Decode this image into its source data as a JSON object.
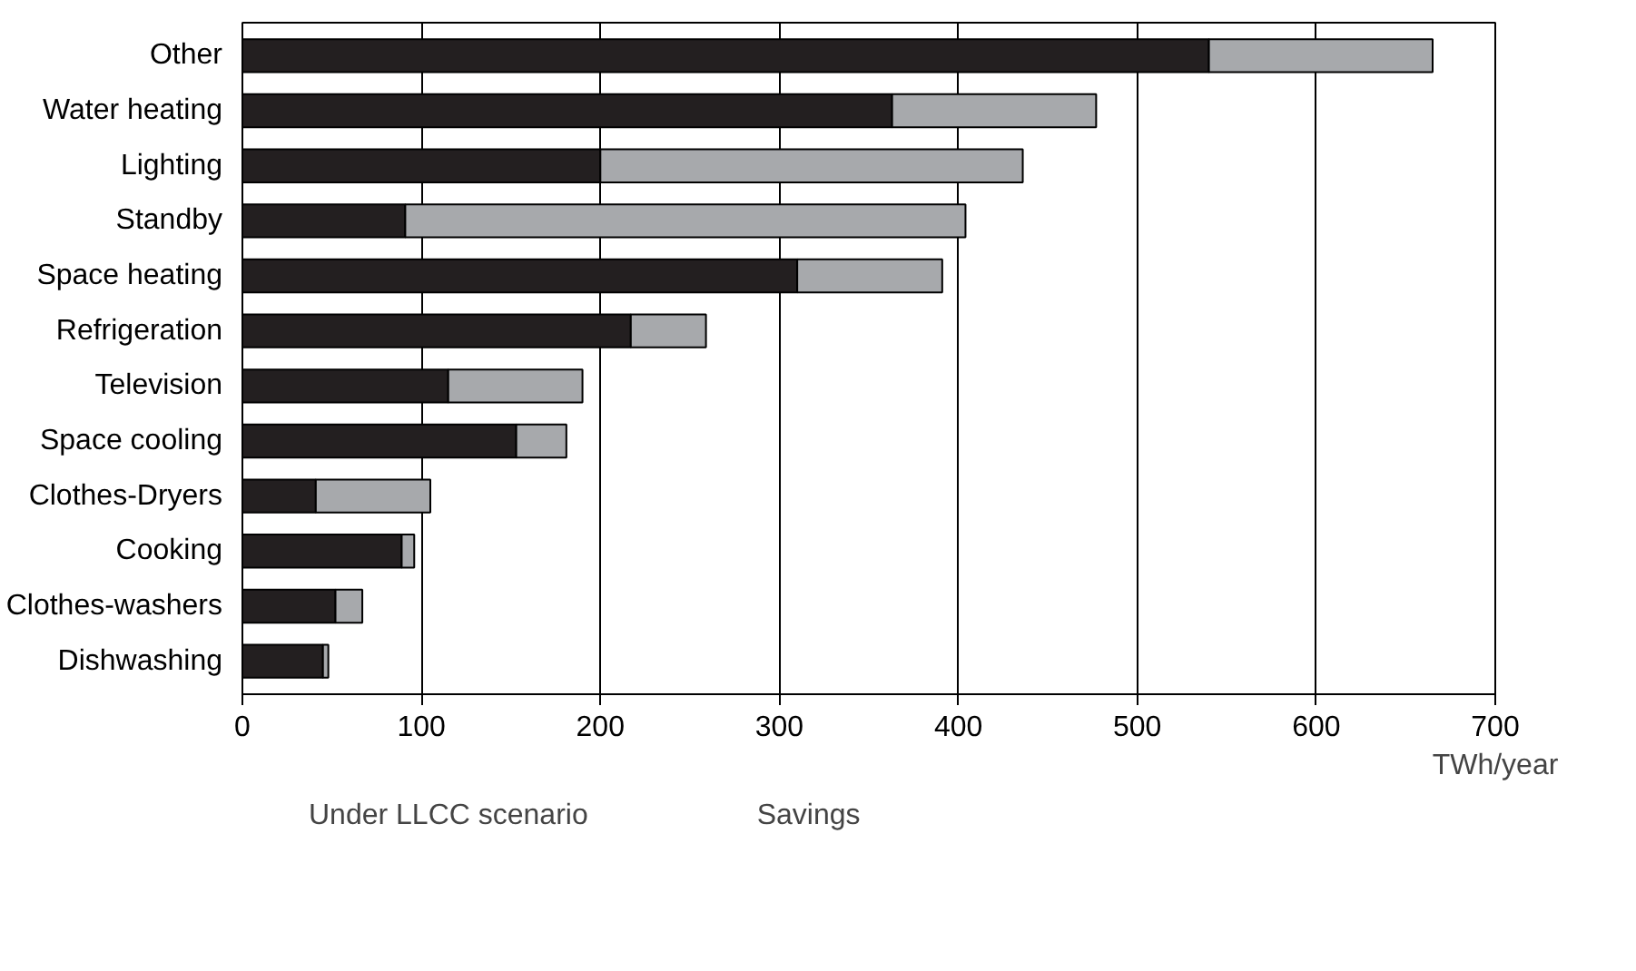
{
  "chart_data": {
    "type": "bar",
    "orientation": "horizontal",
    "stacked": true,
    "categories": [
      "Other",
      "Water heating",
      "Lighting",
      "Standby",
      "Space heating",
      "Refrigeration",
      "Television",
      "Space cooling",
      "Clothes-Dryers",
      "Cooking",
      "Clothes-washers",
      "Dishwashing"
    ],
    "series": [
      {
        "name": "Under LLCC scenario",
        "color": "#231f20",
        "values": [
          540,
          363,
          200,
          91,
          310,
          217,
          115,
          153,
          41,
          89,
          52,
          45
        ]
      },
      {
        "name": "Savings",
        "color": "#a7a9ac",
        "values": [
          125,
          114,
          236,
          313,
          81,
          42,
          75,
          28,
          64,
          7,
          15,
          3
        ]
      }
    ],
    "xlabel": "TWh/year",
    "xlim": [
      0,
      700
    ],
    "xticks": [
      0,
      100,
      200,
      300,
      400,
      500,
      600,
      700
    ],
    "grid": "x",
    "legend": "bottom left"
  }
}
